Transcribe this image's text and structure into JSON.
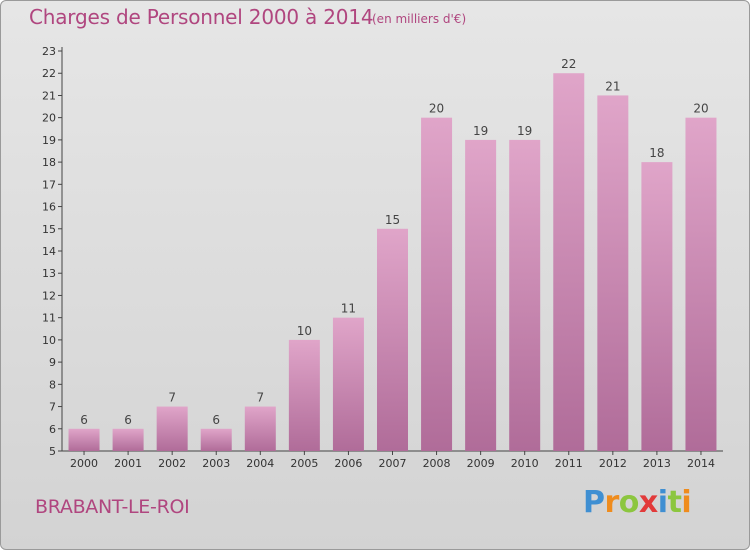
{
  "chart_data": {
    "type": "bar",
    "title": "Charges de Personnel 2000 à 2014",
    "subtitle": "(en milliers d'€)",
    "categories": [
      "2000",
      "2001",
      "2002",
      "2003",
      "2004",
      "2005",
      "2006",
      "2007",
      "2008",
      "2009",
      "2010",
      "2011",
      "2012",
      "2013",
      "2014"
    ],
    "values": [
      6,
      6,
      7,
      6,
      7,
      10,
      11,
      15,
      20,
      19,
      19,
      22,
      21,
      18,
      20
    ],
    "ylim": [
      5,
      23
    ],
    "yticks": [
      5,
      6,
      7,
      8,
      9,
      10,
      11,
      12,
      13,
      14,
      15,
      16,
      17,
      18,
      19,
      20,
      21,
      22,
      23
    ],
    "grid": false,
    "xlabel": "",
    "ylabel": "",
    "bar_color_top": "#e0a5c9",
    "bar_color_bottom": "#b06c99"
  },
  "commune": "BRABANT-LE-ROI",
  "brand": {
    "letters": [
      "P",
      "r",
      "o",
      "x",
      "i",
      "t",
      "i"
    ]
  }
}
